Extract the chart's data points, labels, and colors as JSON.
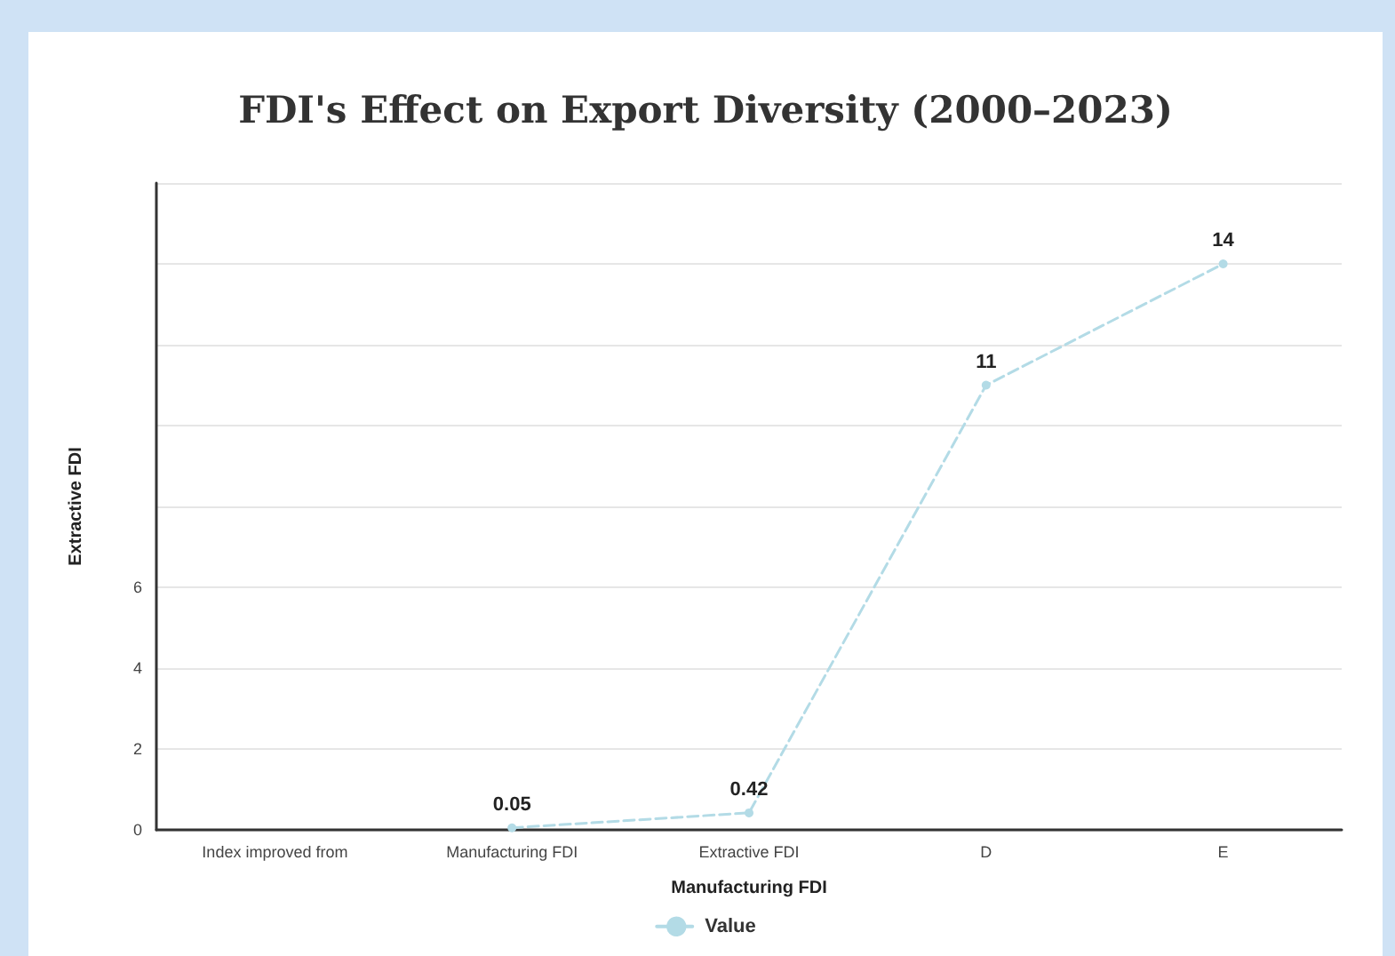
{
  "chart_data": {
    "type": "line",
    "title": "FDI's Effect on Export Diversity (2000–2023)",
    "xlabel": "Manufacturing FDI",
    "ylabel": "Extractive FDI",
    "categories": [
      "Index improved from",
      "Manufacturing FDI",
      "Extractive FDI",
      "D",
      "E"
    ],
    "series": [
      {
        "name": "Value",
        "color": "#b3dbe6",
        "values": [
          null,
          0.05,
          0.42,
          11,
          14
        ]
      }
    ],
    "ylim": [
      0,
      16
    ],
    "yticks": [
      0,
      2,
      4,
      6,
      {
        "value": 8,
        "label": null
      },
      {
        "value": 10,
        "label": null
      },
      {
        "value": 12,
        "label": null
      },
      {
        "value": 14,
        "label": null
      },
      {
        "value": 16,
        "label": null
      }
    ],
    "grid": "y",
    "legend": "bottom",
    "data_labels": true,
    "marker": "circle",
    "line_style": "dashed"
  }
}
